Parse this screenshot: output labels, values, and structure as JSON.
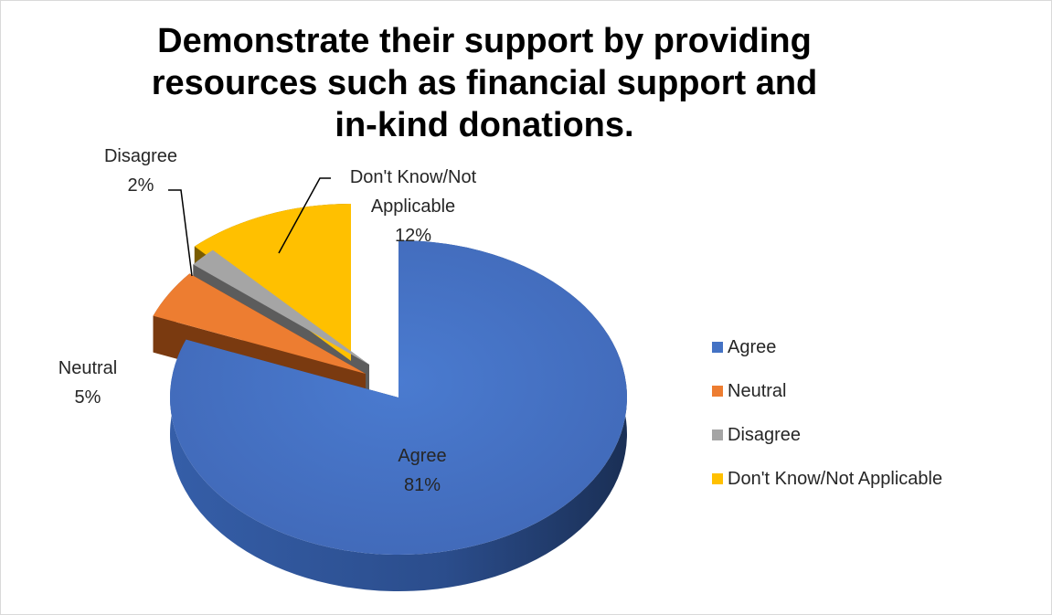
{
  "chart_data": {
    "type": "pie",
    "title": "Demonstrate their support by providing resources such as financial support and in-kind donations.",
    "categories": [
      "Agree",
      "Neutral",
      "Disagree",
      "Don't Know/Not Applicable"
    ],
    "values": [
      81,
      5,
      2,
      12
    ],
    "value_labels": [
      "81%",
      "5%",
      "2%",
      "12%"
    ],
    "colors": [
      "#4472C4",
      "#ED7D31",
      "#A5A5A5",
      "#FFC000"
    ],
    "exploded": [
      "Neutral",
      "Disagree",
      "Don't Know/Not Applicable"
    ],
    "legend_position": "right",
    "style": "3d-exploded"
  }
}
